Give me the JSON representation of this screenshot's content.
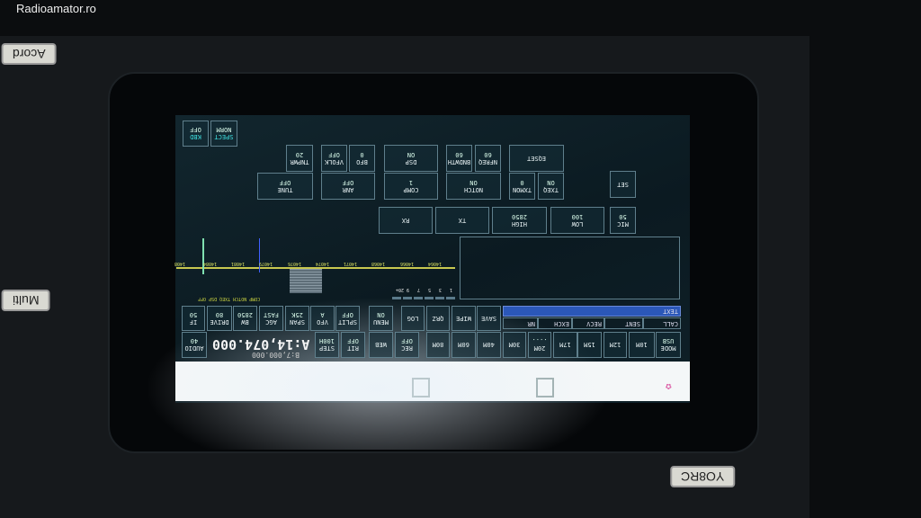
{
  "watermark": "Radioamator.ro",
  "device_labels": {
    "acord": "Acord",
    "multi": "Multi",
    "callsign": "YO8RC"
  },
  "buttons": [
    {
      "id": "spect",
      "label": "SPECT",
      "value": "NORM"
    },
    {
      "id": "kbd",
      "label": "KBD",
      "value": "OFF"
    },
    {
      "id": "tnpwr",
      "label": "TNPWR",
      "value": "20"
    },
    {
      "id": "vfolk",
      "label": "VFOLK",
      "value": "OFF"
    },
    {
      "id": "bfo",
      "label": "BFO",
      "value": "0"
    },
    {
      "id": "dsp",
      "label": "DSP",
      "value": "ON"
    },
    {
      "id": "bndwth",
      "label": "BNDWTH",
      "value": "60"
    },
    {
      "id": "nfreq",
      "label": "NFREQ",
      "value": "60"
    },
    {
      "id": "eqset",
      "label": "EQSET",
      "value": ""
    },
    {
      "id": "tune",
      "label": "TUNE",
      "value": "OFF"
    },
    {
      "id": "anr",
      "label": "ANR",
      "value": "OFF"
    },
    {
      "id": "comp",
      "label": "COMP",
      "value": "1"
    },
    {
      "id": "notch",
      "label": "NOTCH",
      "value": "ON"
    },
    {
      "id": "txmon",
      "label": "TXMON",
      "value": "0"
    },
    {
      "id": "txeq",
      "label": "TXEQ",
      "value": "ON"
    },
    {
      "id": "set",
      "label": "SET",
      "value": ""
    },
    {
      "id": "rx",
      "label": "RX",
      "value": ""
    },
    {
      "id": "tx",
      "label": "TX",
      "value": ""
    },
    {
      "id": "high",
      "label": "HIGH",
      "value": "2850"
    },
    {
      "id": "low",
      "label": "LOW",
      "value": "100"
    },
    {
      "id": "mic",
      "label": "MIC",
      "value": "50"
    },
    {
      "id": "save",
      "label": "SAVE",
      "value": ""
    },
    {
      "id": "wipe",
      "label": "WIPE",
      "value": ""
    },
    {
      "id": "qrz",
      "label": "QRZ",
      "value": ""
    },
    {
      "id": "log",
      "label": "LOG",
      "value": ""
    },
    {
      "id": "menu",
      "label": "MENU",
      "value": "ON"
    },
    {
      "id": "split",
      "label": "SPLIT",
      "value": "OFF"
    },
    {
      "id": "vfo",
      "label": "VFO",
      "value": "A"
    },
    {
      "id": "span",
      "label": "SPAN",
      "value": "25K"
    },
    {
      "id": "agc",
      "label": "AGC",
      "value": "FAST"
    },
    {
      "id": "bw",
      "label": "BW",
      "value": "2850"
    },
    {
      "id": "drive",
      "label": "DRIVE",
      "value": "80"
    },
    {
      "id": "if",
      "label": "IF",
      "value": "50"
    },
    {
      "id": "mode",
      "label": "MODE",
      "value": "USB"
    },
    {
      "id": "b10",
      "label": "10M",
      "value": ""
    },
    {
      "id": "b12",
      "label": "12M",
      "value": ""
    },
    {
      "id": "b15",
      "label": "15M",
      "value": ""
    },
    {
      "id": "b17",
      "label": "17M",
      "value": ""
    },
    {
      "id": "b20",
      "label": "20M",
      "value": "...."
    },
    {
      "id": "b30",
      "label": "30M",
      "value": ""
    },
    {
      "id": "b40",
      "label": "40M",
      "value": ""
    },
    {
      "id": "b60",
      "label": "60M",
      "value": ""
    },
    {
      "id": "b80",
      "label": "80M",
      "value": ""
    },
    {
      "id": "rec",
      "label": "REC",
      "value": "OFF"
    },
    {
      "id": "web",
      "label": "WEB",
      "value": ""
    },
    {
      "id": "rit",
      "label": "RIT",
      "value": "OFF"
    },
    {
      "id": "step",
      "label": "STEP",
      "value": "100H"
    },
    {
      "id": "audio",
      "label": "AUDIO",
      "value": "40"
    }
  ],
  "frequency": {
    "vfo_a": "A:14,074.000",
    "vfo_b": "B:7,000.000"
  },
  "log_fields": {
    "text": "TEXT",
    "call": "CALL",
    "sent": "SENT",
    "recv": "RECV",
    "exch": "EXCH",
    "nr": "NR"
  },
  "spectrum": {
    "ticks": [
      "14064",
      "14066",
      "14068",
      "14071",
      "14074",
      "14076",
      "14079",
      "14081",
      "14084",
      "1408"
    ],
    "smeter": [
      "1",
      "3",
      "5",
      "7",
      "9",
      "20+"
    ],
    "status": "COMP NOTCH TXEQ DSP OFF",
    "colors": {
      "baseline": "#c8c850",
      "rx_marker": "#7fe0b0",
      "tx_marker": "#4060ff"
    }
  }
}
